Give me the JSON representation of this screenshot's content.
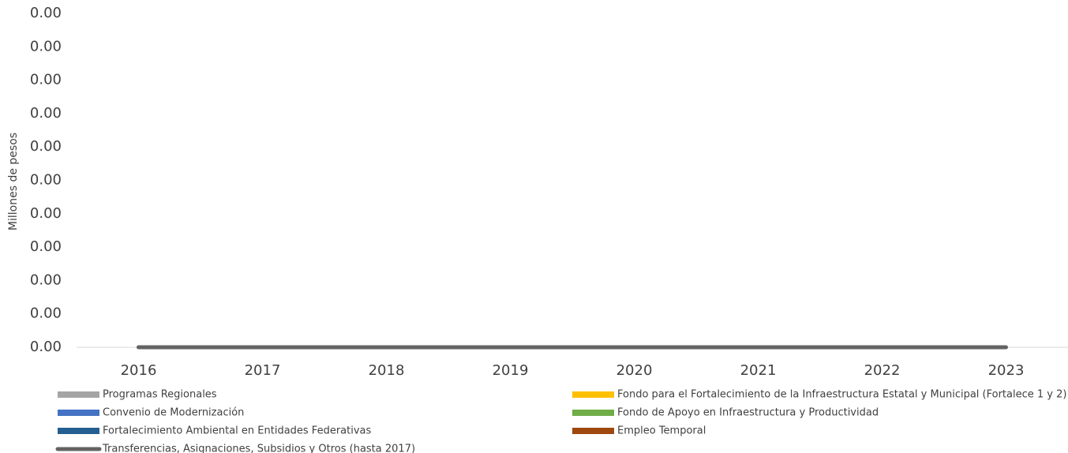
{
  "chart_data": {
    "type": "bar",
    "stacked": true,
    "y_label": "Millones de pesos",
    "categories": [
      "2016",
      "2017",
      "2018",
      "2019",
      "2020",
      "2021",
      "2022",
      "2023"
    ],
    "series": [
      {
        "name": "Programas Regionales",
        "color": "#a5a5a5",
        "values": [
          0,
          0,
          0,
          0,
          0,
          0,
          0,
          0
        ]
      },
      {
        "name": "Fondo para el Fortalecimiento de la Infraestructura Estatal y Municipal (Fortalece 1 y 2)",
        "color": "#ffc000",
        "values": [
          0,
          0,
          0,
          0,
          0,
          0,
          0,
          0
        ]
      },
      {
        "name": "Convenio de Modernización",
        "color": "#4472c4",
        "values": [
          0,
          0,
          0,
          0,
          0,
          0,
          0,
          0
        ]
      },
      {
        "name": "Fondo de Apoyo en Infraestructura y Productividad",
        "color": "#70ad47",
        "values": [
          0,
          0,
          0,
          0,
          0,
          0,
          0,
          0
        ]
      },
      {
        "name": "Fortalecimiento Ambiental en Entidades Federativas",
        "color": "#255e91",
        "values": [
          0,
          0,
          0,
          0,
          0,
          0,
          0,
          0
        ]
      },
      {
        "name": "Empleo Temporal",
        "color": "#9e480e",
        "values": [
          0,
          0,
          0,
          0,
          0,
          0,
          0,
          0
        ]
      },
      {
        "name": "Transferencias, Asignaciones, Subsidios y Otros (hasta 2017)",
        "color": "#636363",
        "type": "line",
        "values": [
          0,
          0,
          0,
          0,
          0,
          0,
          0,
          0
        ]
      }
    ],
    "ylim": [
      0,
      0.004
    ],
    "yticks": [
      {
        "value": 0,
        "label": "0.00"
      },
      {
        "value": 0.0004,
        "label": "0.00"
      },
      {
        "value": 0.0008,
        "label": "0.00"
      },
      {
        "value": 0.0012,
        "label": "0.00"
      },
      {
        "value": 0.0016,
        "label": "0.00"
      },
      {
        "value": 0.002,
        "label": "0.00"
      },
      {
        "value": 0.0024,
        "label": "0.00"
      },
      {
        "value": 0.0028,
        "label": "0.00"
      },
      {
        "value": 0.0032,
        "label": "0.00"
      },
      {
        "value": 0.0036,
        "label": "0.00"
      },
      {
        "value": 0.004,
        "label": "0.00"
      }
    ],
    "grid": false
  }
}
